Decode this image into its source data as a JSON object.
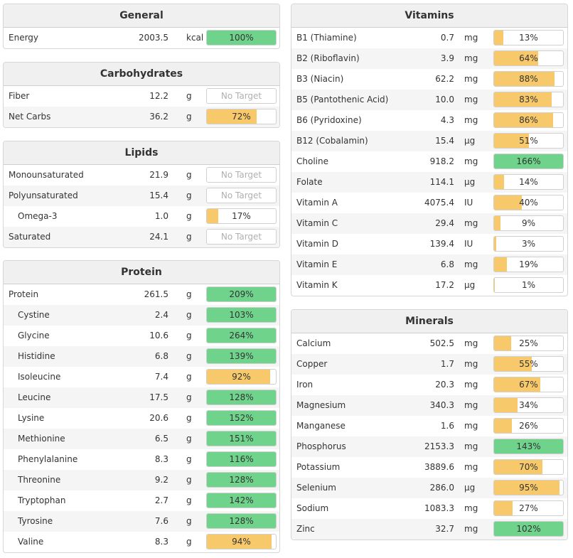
{
  "colors": {
    "ok": "#6fd38c",
    "warn": "#f8c96a",
    "header_bg": "#f0f0f0"
  },
  "general": {
    "title": "General",
    "rows": [
      {
        "name": "Energy",
        "amount": "2003.5",
        "unit": "kcal",
        "label": "100%",
        "pct": 100,
        "status": "ok"
      }
    ]
  },
  "carbohydrates": {
    "title": "Carbohydrates",
    "rows": [
      {
        "name": "Fiber",
        "amount": "12.2",
        "unit": "g",
        "label": "No Target",
        "pct": 0,
        "status": "none"
      },
      {
        "name": "Net Carbs",
        "amount": "36.2",
        "unit": "g",
        "label": "72%",
        "pct": 72,
        "status": "warn"
      }
    ]
  },
  "lipids": {
    "title": "Lipids",
    "rows": [
      {
        "name": "Monounsaturated",
        "amount": "21.9",
        "unit": "g",
        "label": "No Target",
        "pct": 0,
        "status": "none"
      },
      {
        "name": "Polyunsaturated",
        "amount": "15.4",
        "unit": "g",
        "label": "No Target",
        "pct": 0,
        "status": "none"
      },
      {
        "name": "Omega-3",
        "amount": "1.0",
        "unit": "g",
        "label": "17%",
        "pct": 17,
        "status": "warn",
        "indent": true
      },
      {
        "name": "Saturated",
        "amount": "24.1",
        "unit": "g",
        "label": "No Target",
        "pct": 0,
        "status": "none"
      }
    ]
  },
  "protein": {
    "title": "Protein",
    "rows": [
      {
        "name": "Protein",
        "amount": "261.5",
        "unit": "g",
        "label": "209%",
        "pct": 100,
        "status": "ok"
      },
      {
        "name": "Cystine",
        "amount": "2.4",
        "unit": "g",
        "label": "103%",
        "pct": 100,
        "status": "ok",
        "indent": true
      },
      {
        "name": "Glycine",
        "amount": "10.6",
        "unit": "g",
        "label": "264%",
        "pct": 100,
        "status": "ok",
        "indent": true
      },
      {
        "name": "Histidine",
        "amount": "6.8",
        "unit": "g",
        "label": "139%",
        "pct": 100,
        "status": "ok",
        "indent": true
      },
      {
        "name": "Isoleucine",
        "amount": "7.4",
        "unit": "g",
        "label": "92%",
        "pct": 92,
        "status": "warn",
        "indent": true
      },
      {
        "name": "Leucine",
        "amount": "17.5",
        "unit": "g",
        "label": "128%",
        "pct": 100,
        "status": "ok",
        "indent": true
      },
      {
        "name": "Lysine",
        "amount": "20.6",
        "unit": "g",
        "label": "152%",
        "pct": 100,
        "status": "ok",
        "indent": true
      },
      {
        "name": "Methionine",
        "amount": "6.5",
        "unit": "g",
        "label": "151%",
        "pct": 100,
        "status": "ok",
        "indent": true
      },
      {
        "name": "Phenylalanine",
        "amount": "8.3",
        "unit": "g",
        "label": "116%",
        "pct": 100,
        "status": "ok",
        "indent": true
      },
      {
        "name": "Threonine",
        "amount": "9.2",
        "unit": "g",
        "label": "128%",
        "pct": 100,
        "status": "ok",
        "indent": true
      },
      {
        "name": "Tryptophan",
        "amount": "2.7",
        "unit": "g",
        "label": "142%",
        "pct": 100,
        "status": "ok",
        "indent": true
      },
      {
        "name": "Tyrosine",
        "amount": "7.6",
        "unit": "g",
        "label": "128%",
        "pct": 100,
        "status": "ok",
        "indent": true
      },
      {
        "name": "Valine",
        "amount": "8.3",
        "unit": "g",
        "label": "94%",
        "pct": 94,
        "status": "warn",
        "indent": true
      }
    ]
  },
  "vitamins": {
    "title": "Vitamins",
    "rows": [
      {
        "name": "B1 (Thiamine)",
        "amount": "0.7",
        "unit": "mg",
        "label": "13%",
        "pct": 13,
        "status": "warn"
      },
      {
        "name": "B2 (Riboflavin)",
        "amount": "3.9",
        "unit": "mg",
        "label": "64%",
        "pct": 64,
        "status": "warn"
      },
      {
        "name": "B3 (Niacin)",
        "amount": "62.2",
        "unit": "mg",
        "label": "88%",
        "pct": 88,
        "status": "warn"
      },
      {
        "name": "B5 (Pantothenic Acid)",
        "amount": "10.0",
        "unit": "mg",
        "label": "83%",
        "pct": 83,
        "status": "warn"
      },
      {
        "name": "B6 (Pyridoxine)",
        "amount": "4.3",
        "unit": "mg",
        "label": "86%",
        "pct": 86,
        "status": "warn"
      },
      {
        "name": "B12 (Cobalamin)",
        "amount": "15.4",
        "unit": "µg",
        "label": "51%",
        "pct": 51,
        "status": "warn"
      },
      {
        "name": "Choline",
        "amount": "918.2",
        "unit": "mg",
        "label": "166%",
        "pct": 100,
        "status": "ok"
      },
      {
        "name": "Folate",
        "amount": "114.1",
        "unit": "µg",
        "label": "14%",
        "pct": 14,
        "status": "warn"
      },
      {
        "name": "Vitamin A",
        "amount": "4075.4",
        "unit": "IU",
        "label": "40%",
        "pct": 40,
        "status": "warn"
      },
      {
        "name": "Vitamin C",
        "amount": "29.4",
        "unit": "mg",
        "label": "9%",
        "pct": 9,
        "status": "warn"
      },
      {
        "name": "Vitamin D",
        "amount": "139.4",
        "unit": "IU",
        "label": "3%",
        "pct": 3,
        "status": "warn"
      },
      {
        "name": "Vitamin E",
        "amount": "6.8",
        "unit": "mg",
        "label": "19%",
        "pct": 19,
        "status": "warn"
      },
      {
        "name": "Vitamin K",
        "amount": "17.2",
        "unit": "µg",
        "label": "1%",
        "pct": 1,
        "status": "warn"
      }
    ]
  },
  "minerals": {
    "title": "Minerals",
    "rows": [
      {
        "name": "Calcium",
        "amount": "502.5",
        "unit": "mg",
        "label": "25%",
        "pct": 25,
        "status": "warn"
      },
      {
        "name": "Copper",
        "amount": "1.7",
        "unit": "mg",
        "label": "55%",
        "pct": 55,
        "status": "warn"
      },
      {
        "name": "Iron",
        "amount": "20.3",
        "unit": "mg",
        "label": "67%",
        "pct": 67,
        "status": "warn"
      },
      {
        "name": "Magnesium",
        "amount": "340.3",
        "unit": "mg",
        "label": "34%",
        "pct": 34,
        "status": "warn"
      },
      {
        "name": "Manganese",
        "amount": "1.6",
        "unit": "mg",
        "label": "26%",
        "pct": 26,
        "status": "warn"
      },
      {
        "name": "Phosphorus",
        "amount": "2153.3",
        "unit": "mg",
        "label": "143%",
        "pct": 100,
        "status": "ok"
      },
      {
        "name": "Potassium",
        "amount": "3889.6",
        "unit": "mg",
        "label": "70%",
        "pct": 70,
        "status": "warn"
      },
      {
        "name": "Selenium",
        "amount": "286.0",
        "unit": "µg",
        "label": "95%",
        "pct": 95,
        "status": "warn"
      },
      {
        "name": "Sodium",
        "amount": "1083.3",
        "unit": "mg",
        "label": "27%",
        "pct": 27,
        "status": "warn"
      },
      {
        "name": "Zinc",
        "amount": "32.7",
        "unit": "mg",
        "label": "102%",
        "pct": 100,
        "status": "ok"
      }
    ]
  }
}
